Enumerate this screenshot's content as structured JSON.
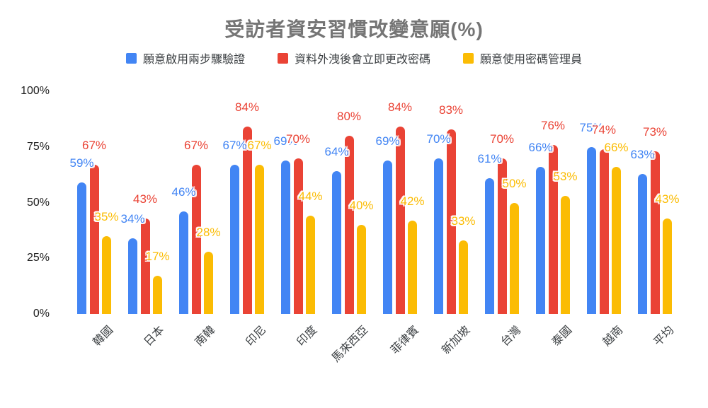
{
  "chart_data": {
    "type": "bar",
    "title": "受訪者資安習慣改變意願(%)",
    "categories": [
      "韓國",
      "日本",
      "南韓",
      "印尼",
      "印度",
      "馬來西亞",
      "菲律賓",
      "新加坡",
      "台灣",
      "泰國",
      "越南",
      "平均"
    ],
    "series": [
      {
        "name": "願意啟用兩步驟驗證",
        "color": "#4285F4",
        "values": [
          59,
          34,
          46,
          67,
          69,
          64,
          69,
          70,
          61,
          66,
          75,
          63
        ]
      },
      {
        "name": "資料外洩後會立即更改密碼",
        "color": "#EA4335",
        "values": [
          67,
          43,
          67,
          84,
          70,
          80,
          84,
          83,
          70,
          76,
          74,
          73
        ]
      },
      {
        "name": "願意使用密碼管理員",
        "color": "#FBBC04",
        "values": [
          35,
          17,
          28,
          67,
          44,
          40,
          42,
          33,
          50,
          53,
          66,
          43
        ]
      }
    ],
    "value_suffix": "%",
    "data_labels_visible": true,
    "y_axis": {
      "range": [
        0,
        100
      ],
      "ticks": [
        {
          "label": "0%",
          "value": 0
        },
        {
          "label": "25%",
          "value": 25
        },
        {
          "label": "50%",
          "value": 50
        },
        {
          "label": "75%",
          "value": 75
        },
        {
          "label": "100%",
          "value": 100
        }
      ]
    },
    "x_label_rotation": -45,
    "grid": false,
    "legend_position": "top",
    "background_color": "#ffffff",
    "title_color": "#757575"
  }
}
